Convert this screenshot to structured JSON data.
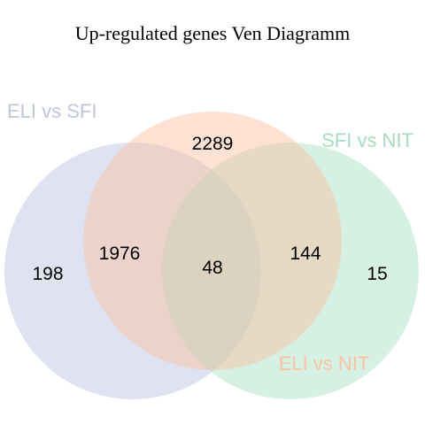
{
  "title": "Up-regulated genes Ven Diagramm",
  "sets": [
    {
      "name": "ELI vs SFI",
      "color": "#b7c1e0",
      "label_color": "#c0c6de"
    },
    {
      "name": "SFI vs NIT",
      "color": "#a4e0c2",
      "label_color": "#a8dcc0"
    },
    {
      "name": "ELI vs NIT",
      "color": "#fbbf9f",
      "label_color": "#f9c2a4"
    }
  ],
  "counts": {
    "eli_sfi_only": "198",
    "eli_nit_only": "2289",
    "sfi_nit_only": "15",
    "eli_sfi_and_eli_nit": "1976",
    "eli_nit_and_sfi_nit": "144",
    "all_three": "48"
  }
}
